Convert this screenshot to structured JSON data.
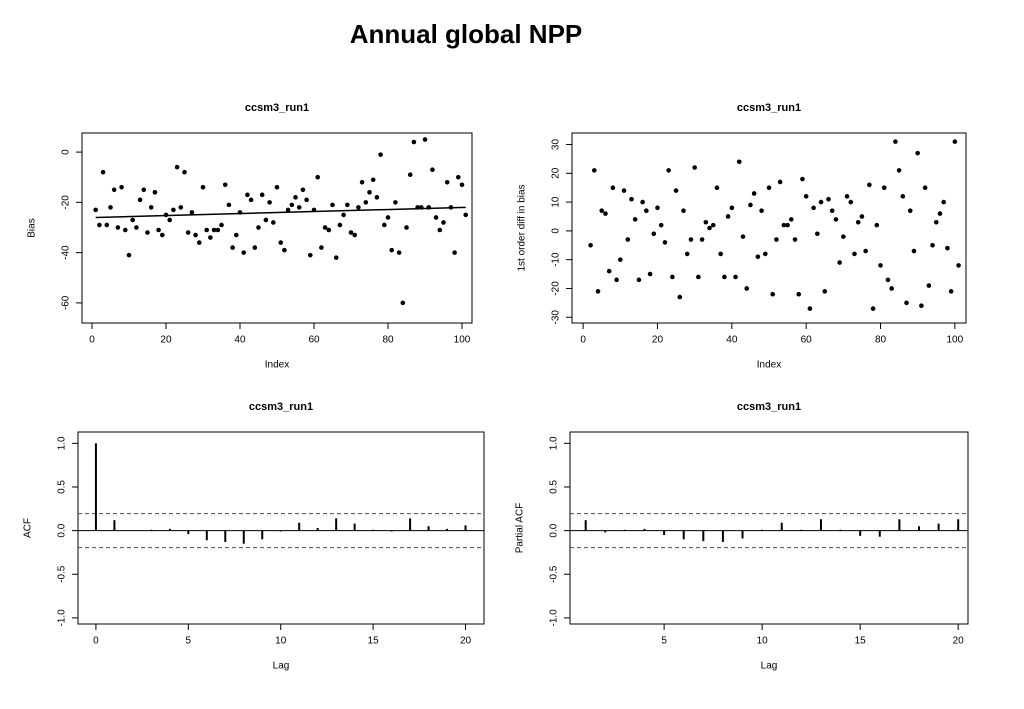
{
  "title": "Annual global NPP",
  "chart_data": [
    {
      "type": "scatter",
      "title": "ccsm3_run1",
      "x_label": "Index",
      "y_label": "Bias",
      "color": "#000000",
      "x": [
        1,
        2,
        3,
        4,
        5,
        6,
        7,
        8,
        9,
        10,
        11,
        12,
        13,
        14,
        15,
        16,
        17,
        18,
        19,
        20,
        21,
        22,
        23,
        24,
        25,
        26,
        27,
        28,
        29,
        30,
        31,
        32,
        33,
        34,
        35,
        36,
        37,
        38,
        39,
        40,
        41,
        42,
        43,
        44,
        45,
        46,
        47,
        48,
        49,
        50,
        51,
        52,
        53,
        54,
        55,
        56,
        57,
        58,
        59,
        60,
        61,
        62,
        63,
        64,
        65,
        66,
        67,
        68,
        69,
        70,
        71,
        72,
        73,
        74,
        75,
        76,
        77,
        78,
        79,
        80,
        81,
        82,
        83,
        84,
        85,
        86,
        87,
        88,
        89,
        90,
        91,
        92,
        93,
        94,
        95,
        96,
        97,
        98,
        99,
        100,
        101
      ],
      "values": [
        -23,
        -29,
        -8,
        -29,
        -22,
        -15,
        -30,
        -14,
        -31,
        -41,
        -27,
        -30,
        -19,
        -15,
        -32,
        -22,
        -16,
        -31,
        -33,
        -25,
        -27,
        -23,
        -6,
        -22,
        -8,
        -32,
        -24,
        -33,
        -36,
        -14,
        -31,
        -34,
        -31,
        -31,
        -29,
        -13,
        -21,
        -38,
        -33,
        -24,
        -40,
        -17,
        -19,
        -38,
        -30,
        -17,
        -27,
        -20,
        -28,
        -14,
        -36,
        -39,
        -23,
        -21,
        -18,
        -22,
        -15,
        -19,
        -41,
        -23,
        -10,
        -38,
        -30,
        -31,
        -21,
        -42,
        -29,
        -25,
        -21,
        -32,
        -33,
        -22,
        -12,
        -20,
        -16,
        -11,
        -18,
        -1,
        -29,
        -26,
        -39,
        -20,
        -40,
        -60,
        -30,
        -9,
        4,
        -22,
        -22,
        5,
        -22,
        -7,
        -26,
        -31,
        -28,
        -12,
        -22,
        -40,
        -10,
        -13,
        -25
      ],
      "trend": {
        "x": [
          1,
          101
        ],
        "values": [
          -26,
          -22
        ]
      },
      "xlim": [
        -2.7,
        102.7
      ],
      "ylim": [
        -68,
        7.6
      ],
      "xticks": [
        0,
        20,
        40,
        60,
        80,
        100
      ],
      "yticks": [
        0,
        -20,
        -40,
        -60
      ]
    },
    {
      "type": "scatter",
      "title": "ccsm3_run1",
      "x_label": "Index",
      "y_label": "1st order diff in bias",
      "color": "#000000",
      "x": [
        2,
        3,
        4,
        5,
        6,
        7,
        8,
        9,
        10,
        11,
        12,
        13,
        14,
        15,
        16,
        17,
        18,
        19,
        20,
        21,
        22,
        23,
        24,
        25,
        26,
        27,
        28,
        29,
        30,
        31,
        32,
        33,
        34,
        35,
        36,
        37,
        38,
        39,
        40,
        41,
        42,
        43,
        44,
        45,
        46,
        47,
        48,
        49,
        50,
        51,
        52,
        53,
        54,
        55,
        56,
        57,
        58,
        59,
        60,
        61,
        62,
        63,
        64,
        65,
        66,
        67,
        68,
        69,
        70,
        71,
        72,
        73,
        74,
        75,
        76,
        77,
        78,
        79,
        80,
        81,
        82,
        83,
        84,
        85,
        86,
        87,
        88,
        89,
        90,
        91,
        92,
        93,
        94,
        95,
        96,
        97,
        98,
        99,
        100,
        101
      ],
      "values": [
        -5,
        21,
        -21,
        7,
        6,
        -14,
        15,
        -17,
        -10,
        14,
        -3,
        11,
        4,
        -17,
        10,
        7,
        -15,
        -1,
        8,
        2,
        -4,
        21,
        -16,
        14,
        -23,
        7,
        -8,
        -3,
        22,
        -16,
        -3,
        3,
        1,
        2,
        15,
        -8,
        -16,
        5,
        8,
        -16,
        24,
        -2,
        -20,
        9,
        13,
        -9,
        7,
        -8,
        15,
        -22,
        -3,
        17,
        2,
        2,
        4,
        -3,
        -22,
        18,
        12,
        -27,
        8,
        -1,
        10,
        -21,
        11,
        7,
        4,
        -11,
        -2,
        12,
        10,
        -8,
        3,
        5,
        -7,
        16,
        -27,
        2,
        -12,
        15,
        -17,
        -20,
        31,
        21,
        12,
        -25,
        7,
        -7,
        27,
        -26,
        15,
        -19,
        -5,
        3,
        6,
        10,
        -6,
        -21,
        31,
        -12
      ],
      "xlim": [
        -3,
        103
      ],
      "ylim": [
        -32,
        34
      ],
      "xticks": [
        0,
        20,
        40,
        60,
        80,
        100
      ],
      "yticks": [
        30,
        20,
        10,
        0,
        -10,
        -20,
        -30
      ]
    },
    {
      "type": "stem",
      "title": "ccsm3_run1",
      "x_label": "Lag",
      "y_label": "ACF",
      "color": "#000000",
      "ci": 0.195,
      "ci_color": "#3a3ae8",
      "x": [
        0,
        1,
        2,
        3,
        4,
        5,
        6,
        7,
        8,
        9,
        10,
        11,
        12,
        13,
        14,
        15,
        16,
        17,
        18,
        19,
        20
      ],
      "values": [
        1.0,
        0.12,
        0.0,
        0.01,
        0.02,
        -0.04,
        -0.11,
        -0.13,
        -0.15,
        -0.1,
        -0.01,
        0.09,
        0.03,
        0.14,
        0.08,
        0.01,
        -0.01,
        0.14,
        0.05,
        0.02,
        0.06
      ],
      "xlim": [
        -0.97,
        21
      ],
      "ylim": [
        -1.07,
        1.13
      ],
      "xticks": [
        0,
        5,
        10,
        15,
        20
      ],
      "yticks": [
        {
          "value": 1,
          "label": "1.0"
        },
        {
          "value": 0.5,
          "label": "0.5"
        },
        {
          "value": 0,
          "label": "0.0"
        },
        {
          "value": -0.5,
          "label": "-0.5"
        },
        {
          "value": -1,
          "label": "-1.0"
        }
      ]
    },
    {
      "type": "stem",
      "title": "ccsm3_run1",
      "x_label": "Lag",
      "y_label": "Partial ACF",
      "color": "#000000",
      "ci": 0.195,
      "ci_color": "#3a3ae8",
      "x": [
        1,
        2,
        3,
        4,
        5,
        6,
        7,
        8,
        9,
        10,
        11,
        12,
        13,
        14,
        15,
        16,
        17,
        18,
        19,
        20
      ],
      "values": [
        0.12,
        -0.02,
        0.01,
        0.02,
        -0.05,
        -0.1,
        -0.12,
        -0.13,
        -0.09,
        0.01,
        0.09,
        0.01,
        0.13,
        0.01,
        -0.06,
        -0.07,
        0.13,
        0.05,
        0.08,
        0.13
      ],
      "xlim": [
        0.2,
        20.5
      ],
      "ylim": [
        -1.07,
        1.13
      ],
      "xticks": [
        5,
        10,
        15,
        20
      ],
      "yticks": [
        {
          "value": 1,
          "label": "1.0"
        },
        {
          "value": 0.5,
          "label": "0.5"
        },
        {
          "value": 0,
          "label": "0.0"
        },
        {
          "value": -0.5,
          "label": "-0.5"
        },
        {
          "value": -1,
          "label": "-1.0"
        }
      ]
    }
  ]
}
